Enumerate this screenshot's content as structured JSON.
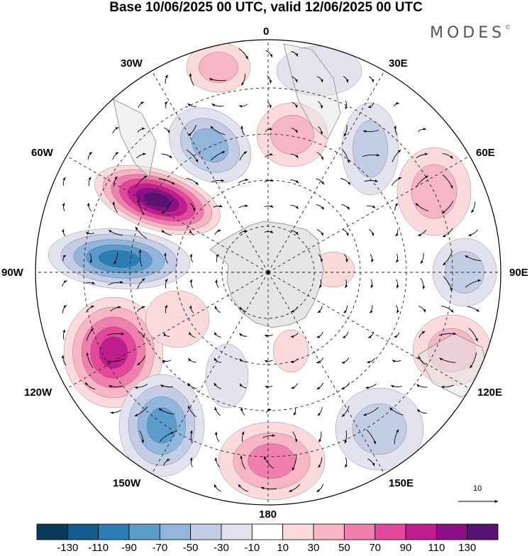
{
  "title": "Base 10/06/2025 00 UTC, valid 12/06/2025 00 UTC",
  "brand": "MODES",
  "brand_mark": "©",
  "longitude_labels": {
    "lon_0": "0",
    "lon_30e": "30E",
    "lon_60e": "60E",
    "lon_90e": "90E",
    "lon_120e": "120E",
    "lon_150e": "150E",
    "lon_180": "180",
    "lon_150w": "150W",
    "lon_120w": "120W",
    "lon_90w": "90W",
    "lon_60w": "60W",
    "lon_30w": "30W"
  },
  "reference_vector": "10",
  "colorbar": {
    "labels": [
      "-130",
      "-110",
      "-90",
      "-70",
      "-50",
      "-30",
      "-10",
      "10",
      "30",
      "50",
      "70",
      "90",
      "110",
      "130"
    ],
    "colors": [
      "#0b3a5a",
      "#125c8c",
      "#2a7db5",
      "#5b9ccb",
      "#91b5db",
      "#c3cde6",
      "#e3e3f0",
      "#ffffff",
      "#fadadb",
      "#f6b6c6",
      "#ef7fac",
      "#e3489a",
      "#c01d8e",
      "#8c0f87",
      "#581272"
    ]
  },
  "map_colors": {
    "land": "#e6e6e6",
    "land_edge": "#888888",
    "grid": "#222222"
  }
}
